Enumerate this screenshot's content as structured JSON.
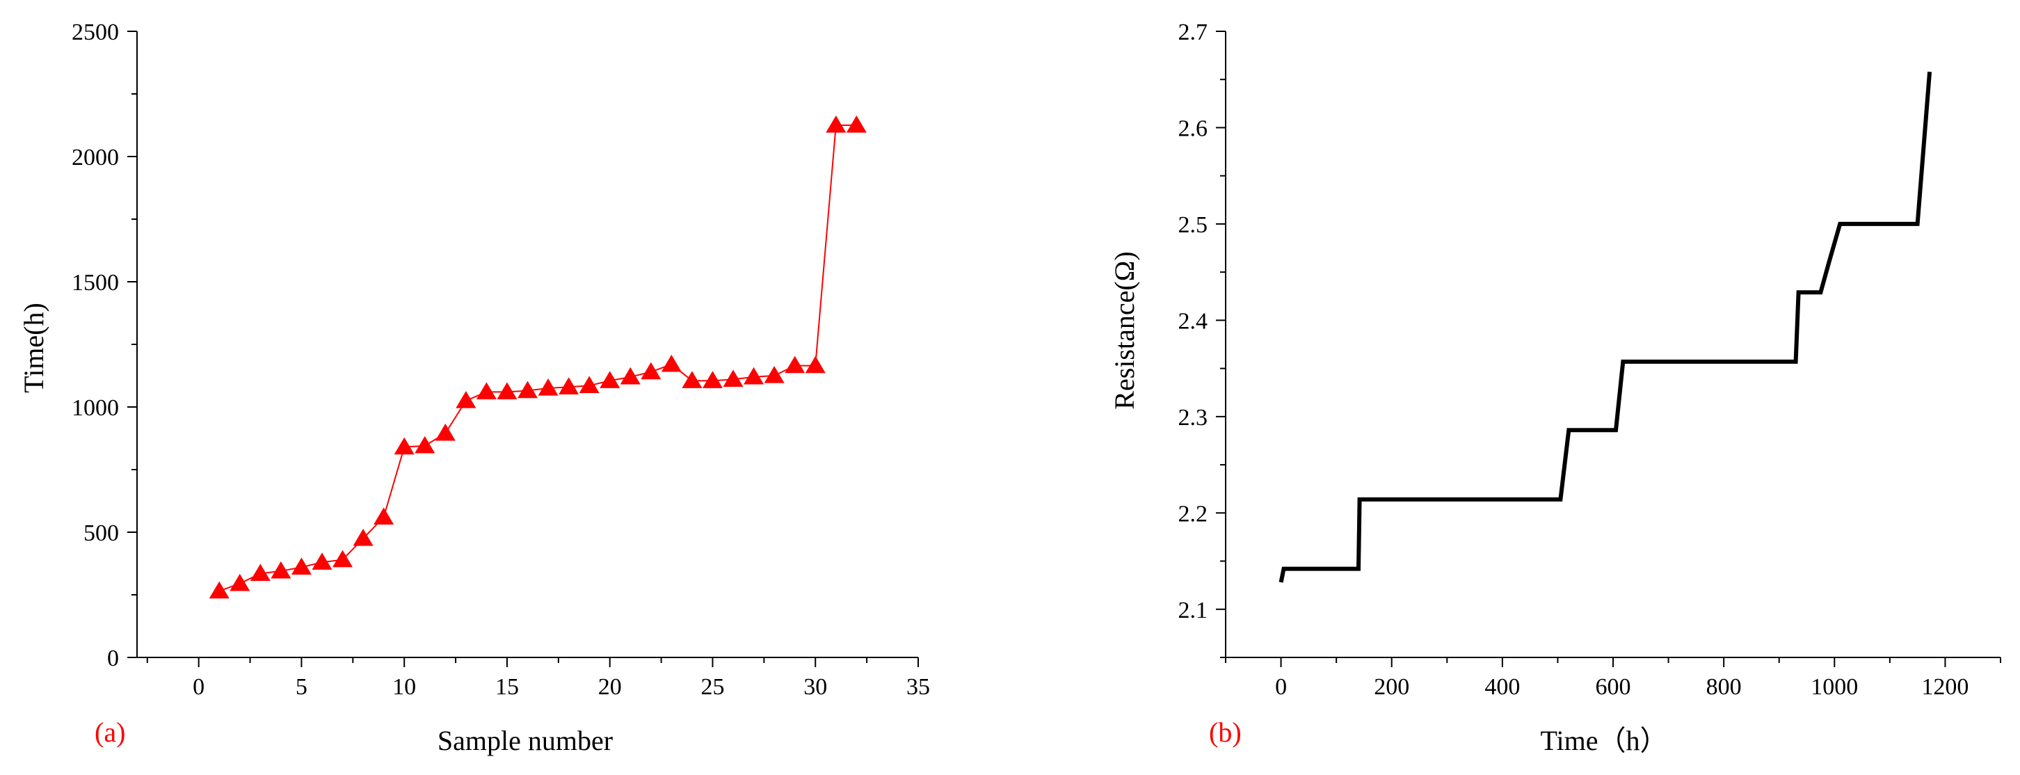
{
  "colors": {
    "series_a": "#ff0000",
    "series_b": "#000000",
    "axis": "#000000",
    "panel_label": "#ff0000"
  },
  "chart_data": [
    {
      "type": "line",
      "panel_label": "(a)",
      "xlabel": "Sample number",
      "ylabel": "Time(h)",
      "xlim": [
        -3,
        35
      ],
      "ylim": [
        0,
        2500
      ],
      "xticks": [
        "0",
        "5",
        "10",
        "15",
        "20",
        "25",
        "30",
        "35"
      ],
      "yticks": [
        "0",
        "500",
        "1000",
        "1500",
        "2000",
        "2500"
      ],
      "marker": "triangle",
      "series": [
        {
          "x": [
            1,
            2,
            3,
            4,
            5,
            6,
            7,
            8,
            9,
            10,
            11,
            12,
            13,
            14,
            15,
            16,
            17,
            18,
            19,
            20,
            21,
            22,
            23,
            24,
            25,
            26,
            27,
            28,
            29,
            30,
            31,
            32
          ],
          "values": [
            265,
            295,
            335,
            345,
            360,
            380,
            390,
            475,
            560,
            840,
            845,
            895,
            1025,
            1060,
            1060,
            1065,
            1075,
            1080,
            1085,
            1105,
            1120,
            1140,
            1170,
            1105,
            1105,
            1110,
            1120,
            1125,
            1165,
            1165,
            2125,
            2125
          ]
        }
      ]
    },
    {
      "type": "line",
      "panel_label": "(b)",
      "xlabel": "Time（h）",
      "ylabel": "Resistance(Ω)",
      "xlim": [
        -100,
        1300
      ],
      "ylim": [
        2.05,
        2.7
      ],
      "xticks": [
        "0",
        "200",
        "400",
        "600",
        "800",
        "1000",
        "1200"
      ],
      "yticks": [
        "2.1",
        "2.2",
        "2.3",
        "2.4",
        "2.5",
        "2.6",
        "2.7"
      ],
      "series": [
        {
          "x": [
            0,
            5,
            140,
            142,
            505,
            520,
            605,
            618,
            930,
            935,
            975,
            990,
            1010,
            1150,
            1172
          ],
          "values": [
            2.128,
            2.142,
            2.142,
            2.214,
            2.214,
            2.286,
            2.286,
            2.357,
            2.357,
            2.429,
            2.429,
            2.46,
            2.5,
            2.5,
            2.658
          ]
        }
      ]
    }
  ]
}
